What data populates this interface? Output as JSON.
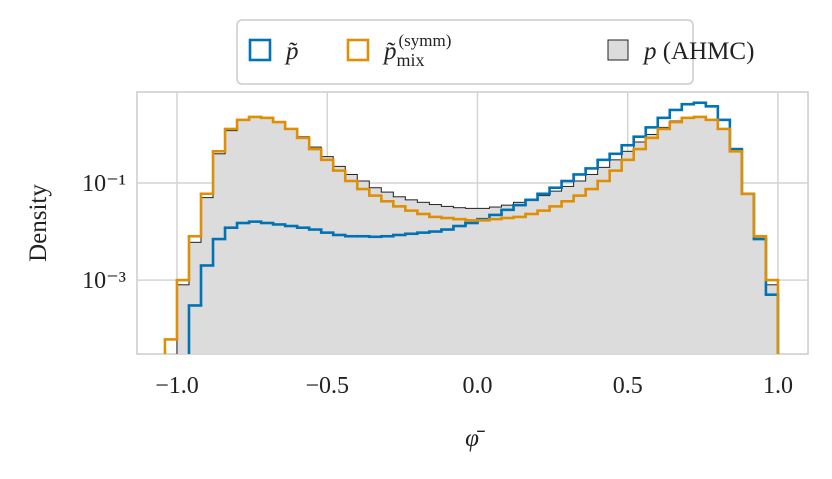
{
  "chart_data": {
    "type": "histogram",
    "xlabel": "φ̄",
    "ylabel": "Density",
    "bins": [
      -1.04,
      -1.0,
      -0.96,
      -0.92,
      -0.88,
      -0.84,
      -0.8,
      -0.76,
      -0.72,
      -0.68,
      -0.64,
      -0.6,
      -0.56,
      -0.52,
      -0.48,
      -0.44,
      -0.4,
      -0.36,
      -0.32,
      -0.28,
      -0.24,
      -0.2,
      -0.16,
      -0.12,
      -0.08,
      -0.04,
      0.0,
      0.04,
      0.08,
      0.12,
      0.16,
      0.2,
      0.24,
      0.28,
      0.32,
      0.36,
      0.4,
      0.44,
      0.48,
      0.52,
      0.56,
      0.6,
      0.64,
      0.68,
      0.72,
      0.76,
      0.8,
      0.84,
      0.88,
      0.92,
      0.96,
      1.0,
      1.04
    ],
    "series": [
      {
        "name": "p (AHMC)",
        "style": "filled",
        "color": "#dcdcdc",
        "edgecolor": "#222222",
        "values": [
          null,
          0.0008,
          0.006,
          0.05,
          0.4,
          1.2,
          2.0,
          2.3,
          2.2,
          1.8,
          1.3,
          0.9,
          0.55,
          0.35,
          0.22,
          0.15,
          0.11,
          0.08,
          0.065,
          0.052,
          0.045,
          0.04,
          0.036,
          0.033,
          0.031,
          0.03,
          0.03,
          0.032,
          0.035,
          0.04,
          0.046,
          0.055,
          0.068,
          0.085,
          0.11,
          0.15,
          0.21,
          0.3,
          0.45,
          0.7,
          1.0,
          1.4,
          1.9,
          2.2,
          2.3,
          2.0,
          1.3,
          0.45,
          0.06,
          0.008,
          0.0008,
          null
        ]
      },
      {
        "name": "p̃",
        "style": "step",
        "color": "#0173b2",
        "values": [
          null,
          null,
          0.0003,
          0.002,
          0.007,
          0.012,
          0.015,
          0.016,
          0.015,
          0.014,
          0.013,
          0.012,
          0.011,
          0.0095,
          0.0085,
          0.008,
          0.008,
          0.0078,
          0.008,
          0.0085,
          0.009,
          0.0095,
          0.01,
          0.011,
          0.013,
          0.015,
          0.018,
          0.022,
          0.028,
          0.035,
          0.045,
          0.06,
          0.08,
          0.11,
          0.15,
          0.2,
          0.3,
          0.4,
          0.6,
          0.9,
          1.4,
          2.2,
          3.2,
          4.2,
          4.5,
          3.8,
          2.0,
          0.5,
          0.06,
          0.007,
          0.0005,
          null
        ]
      },
      {
        "name": "p̃mix(symm)",
        "style": "step",
        "color": "#de8f05",
        "values": [
          6e-05,
          0.001,
          0.008,
          0.06,
          0.45,
          1.3,
          2.0,
          2.3,
          2.2,
          1.8,
          1.3,
          0.85,
          0.5,
          0.3,
          0.18,
          0.11,
          0.075,
          0.055,
          0.042,
          0.033,
          0.027,
          0.023,
          0.02,
          0.019,
          0.018,
          0.017,
          0.017,
          0.018,
          0.019,
          0.02,
          0.023,
          0.027,
          0.033,
          0.042,
          0.055,
          0.075,
          0.11,
          0.18,
          0.3,
          0.5,
          0.85,
          1.3,
          1.8,
          2.2,
          2.3,
          2.0,
          1.3,
          0.45,
          0.06,
          0.008,
          0.001,
          null
        ]
      }
    ],
    "legend_order": [
      1,
      2,
      0
    ],
    "legend": "upper center outside",
    "xlim": [
      -1.133,
      1.1
    ],
    "xticks": [
      {
        "value": -1.0,
        "label": "−1.0"
      },
      {
        "value": -0.5,
        "label": "−0.5"
      },
      {
        "value": 0.0,
        "label": "0.0"
      },
      0.5,
      {
        "value": 1.0,
        "label": "1.0"
      }
    ],
    "ylim": [
      3e-05,
      7.5
    ],
    "log_y": true,
    "yticks": [
      {
        "value": 0.1,
        "label": "10⁻¹"
      },
      {
        "value": 0.001,
        "label": "10⁻³"
      }
    ],
    "grid": true
  }
}
